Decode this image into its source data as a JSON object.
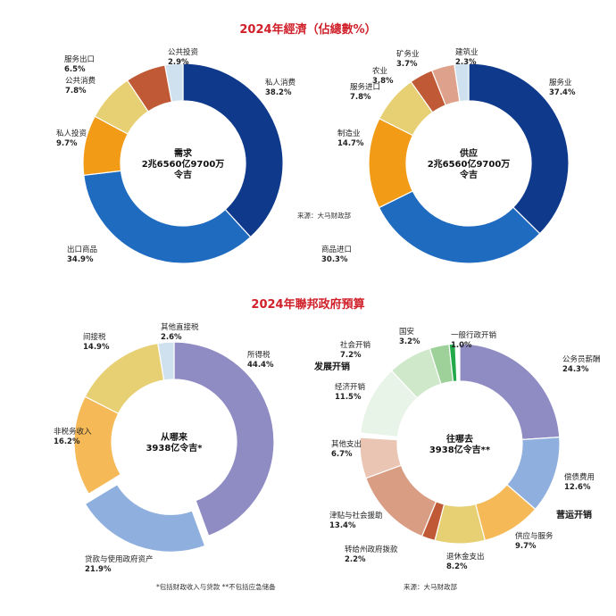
{
  "title_top": "2024年經濟（佔總數%）",
  "title_bottom": "2024年聯邦政府預算",
  "source_top": "来源：大马财政部",
  "source_bottom": "来源：大马财政部",
  "footnote": "*包括财政收入与贷款 **不包括应急储备",
  "chart_data": [
    {
      "type": "pie",
      "center": [
        "需求",
        "2兆6560亿9700万",
        "令吉"
      ],
      "slices": [
        {
          "label": "私人消费",
          "value": 38.2,
          "display": "38.2%",
          "color": "#0f3a8c"
        },
        {
          "label": "出口商品",
          "value": 34.9,
          "display": "34.9%",
          "color": "#1f6bc0"
        },
        {
          "label": "私人投资",
          "value": 9.7,
          "display": "9.7%",
          "color": "#f29b17"
        },
        {
          "label": "公共消费",
          "value": 7.8,
          "display": "7.8%",
          "color": "#e7cf73"
        },
        {
          "label": "服务出口",
          "value": 6.5,
          "display": "6.5%",
          "color": "#c05a36"
        },
        {
          "label": "公共投资",
          "value": 2.9,
          "display": "2.9%",
          "color": "#cfe1ee"
        }
      ]
    },
    {
      "type": "pie",
      "center": [
        "供应",
        "2兆6560亿9700万",
        "令吉"
      ],
      "slices": [
        {
          "label": "服务业",
          "value": 37.4,
          "display": "37.4%",
          "color": "#0f3a8c"
        },
        {
          "label": "商品进口",
          "value": 30.3,
          "display": "30.3%",
          "color": "#1f6bc0"
        },
        {
          "label": "制造业",
          "value": 14.7,
          "display": "14.7%",
          "color": "#f29b17"
        },
        {
          "label": "服务进口",
          "value": 7.8,
          "display": "7.8%",
          "color": "#e7cf73"
        },
        {
          "label": "农业",
          "value": 3.8,
          "display": "3.8%",
          "color": "#c05a36"
        },
        {
          "label": "矿务业",
          "value": 3.7,
          "display": "3.7%",
          "color": "#dea18b"
        },
        {
          "label": "建筑业",
          "value": 2.3,
          "display": "2.3%",
          "color": "#cfe1ee"
        }
      ]
    },
    {
      "type": "pie",
      "center": [
        "从哪来",
        "3938亿令吉*"
      ],
      "slices": [
        {
          "label": "所得税",
          "value": 44.4,
          "display": "44.4%",
          "color": "#8f8cc4"
        },
        {
          "label": "贷款与使用政府资产",
          "value": 21.9,
          "display": "21.9%",
          "color": "#8fb0de",
          "exploded": true
        },
        {
          "label": "非税务收入",
          "value": 16.2,
          "display": "16.2%",
          "color": "#f6b957"
        },
        {
          "label": "间接税",
          "value": 14.9,
          "display": "14.9%",
          "color": "#e7cf73"
        },
        {
          "label": "其他直接税",
          "value": 2.6,
          "display": "2.6%",
          "color": "#cfe1ee"
        }
      ]
    },
    {
      "type": "pie",
      "center": [
        "往哪去",
        "3938亿令吉**"
      ],
      "groups": [
        "发展开销",
        "营运开销"
      ],
      "slices": [
        {
          "label": "公务员薪酬",
          "value": 24.3,
          "display": "24.3%",
          "color": "#8f8cc4",
          "group": "营运开销"
        },
        {
          "label": "偿债费用",
          "value": 12.6,
          "display": "12.6%",
          "color": "#8fb0de",
          "group": "营运开销"
        },
        {
          "label": "供应与服务",
          "value": 9.7,
          "display": "9.7%",
          "color": "#f6b957",
          "group": "营运开销"
        },
        {
          "label": "退休金支出",
          "value": 8.2,
          "display": "8.2%",
          "color": "#e7cf73",
          "group": "营运开销"
        },
        {
          "label": "转给州政府拨款",
          "value": 2.2,
          "display": "2.2%",
          "color": "#c05a36",
          "group": "营运开销"
        },
        {
          "label": "津贴与社会援助",
          "value": 13.4,
          "display": "13.4%",
          "color": "#d99d84",
          "group": "营运开销"
        },
        {
          "label": "其他支出",
          "value": 6.7,
          "display": "6.7%",
          "color": "#ebc5b3",
          "group": "营运开销"
        },
        {
          "label": "经济开销",
          "value": 11.5,
          "display": "11.5%",
          "color": "#e9f4e8",
          "group": "发展开销"
        },
        {
          "label": "社会开销",
          "value": 7.2,
          "display": "7.2%",
          "color": "#cfe8ca",
          "group": "发展开销"
        },
        {
          "label": "国安",
          "value": 3.2,
          "display": "3.2%",
          "color": "#9ed19a",
          "group": "发展开销"
        },
        {
          "label": "一般行政开销",
          "value": 1.0,
          "display": "1.0%",
          "color": "#23a84a",
          "group": "发展开销"
        }
      ]
    }
  ]
}
